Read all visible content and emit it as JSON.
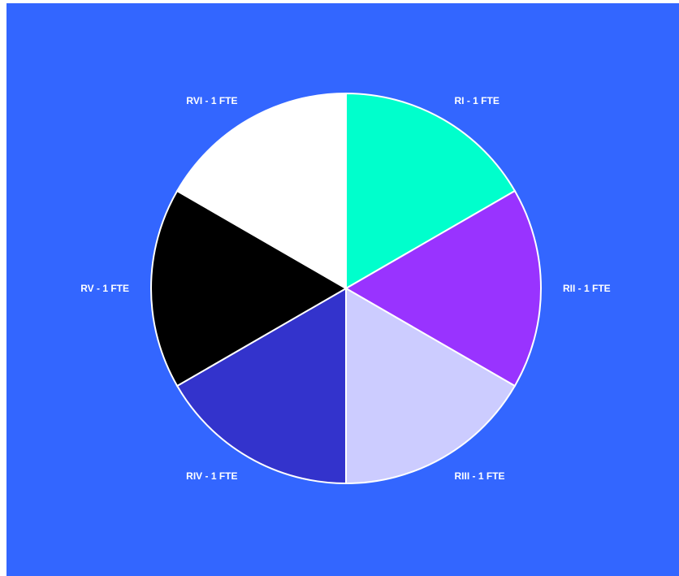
{
  "chart_data": {
    "type": "pie",
    "title": "",
    "categories": [
      "RI - 1 FTE",
      "RII - 1 FTE",
      "RIII - 1 FTE",
      "RIV - 1 FTE",
      "RV - 1 FTE",
      "RVI - 1 FTE"
    ],
    "values": [
      1,
      1,
      1,
      1,
      1,
      1
    ],
    "colors": [
      "#00ffcc",
      "#9933ff",
      "#ccccff",
      "#3333cc",
      "#000000",
      "#ffffff"
    ],
    "start_angle": "12 o'clock",
    "direction": "clockwise",
    "slice_border_color": "#ffffff",
    "background_color": "#3366ff",
    "label_color": "#ffffff",
    "legend": "none"
  }
}
